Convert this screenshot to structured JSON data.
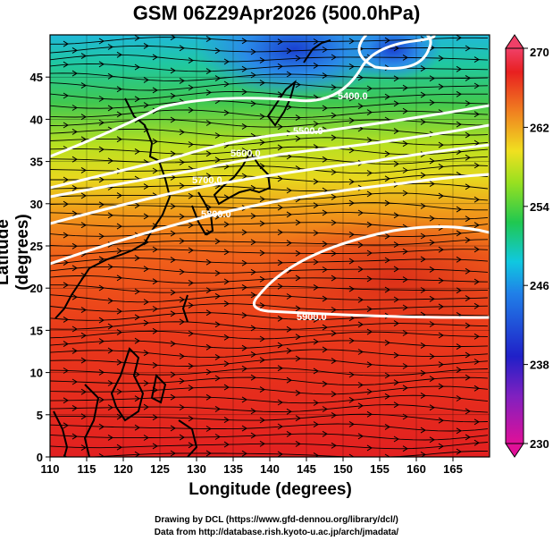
{
  "title": "GSM 06Z29Apr2026 (500.0hPa)",
  "axes": {
    "xlabel": "Longitude (degrees)",
    "ylabel": "Latitude (degrees)",
    "x_ticks": [
      "110",
      "115",
      "120",
      "125",
      "130",
      "135",
      "140",
      "145",
      "150",
      "155",
      "160",
      "165"
    ],
    "y_ticks": [
      "0",
      "5",
      "10",
      "15",
      "20",
      "25",
      "30",
      "35",
      "40",
      "45"
    ],
    "x_range": [
      110,
      170
    ],
    "y_range": [
      0,
      50
    ]
  },
  "colorbar": {
    "labels": [
      "270",
      "262",
      "254",
      "246",
      "238",
      "230"
    ],
    "range": [
      230,
      270
    ],
    "colors": [
      "#e0109a",
      "#2020c0",
      "#1f7fe8",
      "#00c8e0",
      "#20c040",
      "#a0e020",
      "#f0e020",
      "#f08020",
      "#e82020",
      "#f0406a"
    ]
  },
  "contours": [
    {
      "label": "5400.0"
    },
    {
      "label": "5500.0"
    },
    {
      "label": "5600.0"
    },
    {
      "label": "5700.0"
    },
    {
      "label": "5800.0"
    },
    {
      "label": "5900.0"
    }
  ],
  "credits": {
    "line1": "Drawing by DCL (https://www.gfd-dennou.org/library/dcl/)",
    "line2": "Data from http://database.rish.kyoto-u.ac.jp/arch/jmadata/"
  }
}
